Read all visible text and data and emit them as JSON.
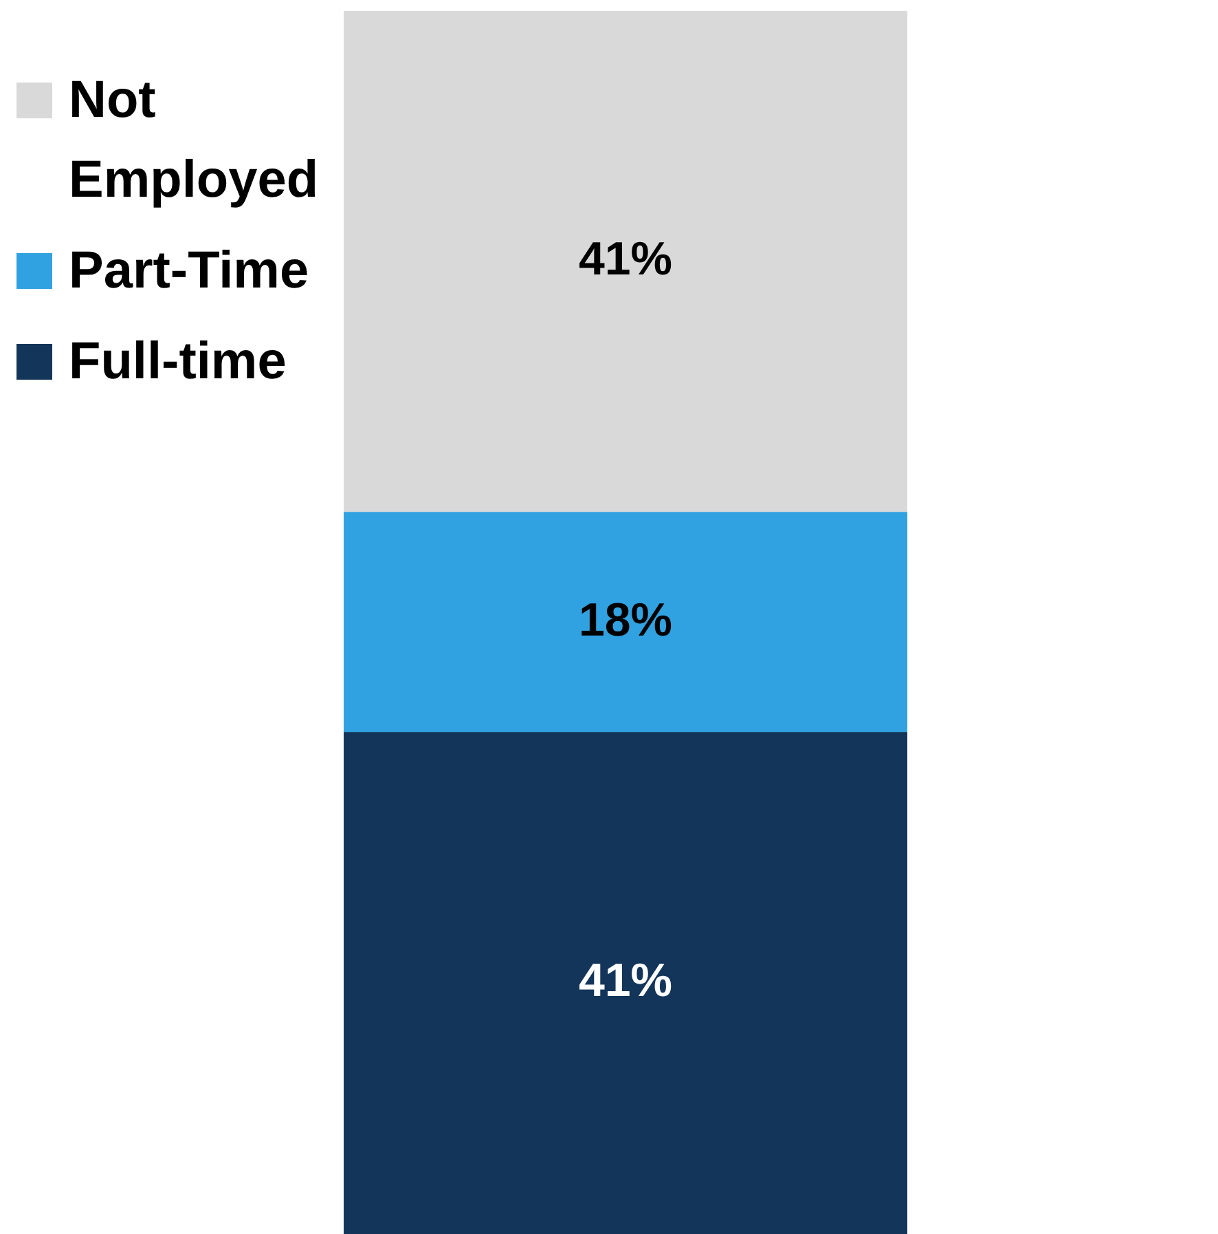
{
  "chart_data": {
    "type": "bar",
    "stacked": true,
    "categories": [
      null
    ],
    "legend": "left",
    "tick_labels": false,
    "series": [
      {
        "name": "Full-time",
        "color": "#14355a",
        "values": [
          41
        ],
        "value_labels": [
          "41%"
        ]
      },
      {
        "name": "Part-Time",
        "color": "#31a2e1",
        "values": [
          18
        ],
        "value_labels": [
          "18%"
        ]
      },
      {
        "name": "Not Employed",
        "color": "#d9d9d9",
        "values": [
          41
        ],
        "value_labels": [
          "41%"
        ]
      }
    ]
  }
}
